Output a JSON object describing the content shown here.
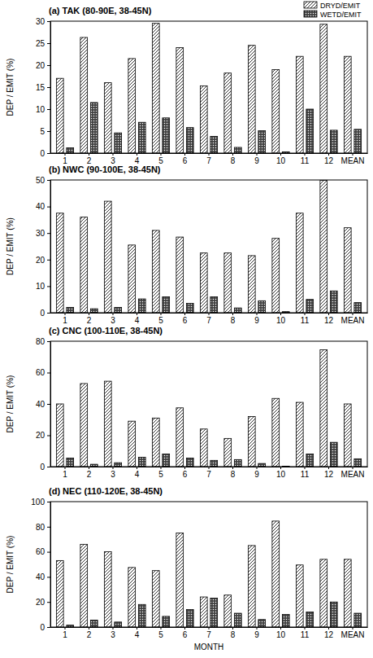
{
  "chart_data": [
    {
      "type": "bar",
      "title": "(a) TAK (80-90E, 38-45N)",
      "y_label": "DEP / EMIT (%)",
      "categories": [
        "1",
        "2",
        "3",
        "4",
        "5",
        "6",
        "7",
        "8",
        "9",
        "10",
        "11",
        "12",
        "MEAN"
      ],
      "series": [
        {
          "name": "DRYD/EMIT",
          "color": "#000000",
          "values": [
            17,
            26.3,
            16,
            21.5,
            29.5,
            24,
            15.3,
            18.2,
            24.5,
            19,
            22,
            29.3,
            22
          ]
        },
        {
          "name": "WETD/EMIT",
          "color": "#000000",
          "values": [
            1.2,
            11.5,
            4.6,
            7,
            8,
            5.8,
            3.8,
            1.3,
            5.1,
            0.3,
            10,
            5.2,
            5.4
          ]
        }
      ],
      "ylim": [
        0,
        30
      ],
      "yticks": [
        0,
        5,
        10,
        15,
        20,
        25,
        30
      ],
      "legend": "top-right"
    },
    {
      "type": "bar",
      "title": "(b) NWC (90-100E, 38-45N)",
      "y_label": "DEP / EMIT (%)",
      "categories": [
        "1",
        "2",
        "3",
        "4",
        "5",
        "6",
        "7",
        "8",
        "9",
        "10",
        "11",
        "12",
        "MEAN"
      ],
      "series": [
        {
          "color": "#000000",
          "values": [
            37.5,
            36,
            42,
            25.5,
            31,
            28.5,
            22.5,
            22.5,
            21.5,
            28,
            37.5,
            49.8,
            32
          ]
        },
        {
          "color": "#000000",
          "values": [
            2,
            1.5,
            2,
            5.2,
            6,
            3.5,
            6,
            1.8,
            4.5,
            0.4,
            5,
            8.2,
            3.8
          ]
        }
      ],
      "ylim": [
        0,
        50
      ],
      "yticks": [
        0,
        10,
        20,
        30,
        40,
        50
      ]
    },
    {
      "type": "bar",
      "title": "(c) CNC (100-110E, 38-45N)",
      "y_label": "DEP / EMIT (%)",
      "categories": [
        "1",
        "2",
        "3",
        "4",
        "5",
        "6",
        "7",
        "8",
        "9",
        "10",
        "11",
        "12",
        "MEAN"
      ],
      "series": [
        {
          "color": "#000000",
          "values": [
            40,
            53,
            54.5,
            29,
            31,
            37.5,
            24,
            18,
            32,
            43.5,
            41,
            74.5,
            40
          ]
        },
        {
          "color": "#000000",
          "values": [
            5.5,
            1.5,
            2.5,
            6,
            8,
            5.5,
            4,
            4.5,
            2,
            0.3,
            8,
            15.5,
            5
          ]
        }
      ],
      "ylim": [
        0,
        80
      ],
      "yticks": [
        0,
        20,
        40,
        60,
        80
      ]
    },
    {
      "type": "bar",
      "title": "(d) NEC (110-120E, 38-45N)",
      "y_label": "DEP / EMIT (%)",
      "x_label": "MONTH",
      "categories": [
        "1",
        "2",
        "3",
        "4",
        "5",
        "6",
        "7",
        "8",
        "9",
        "10",
        "11",
        "12",
        "MEAN"
      ],
      "series": [
        {
          "color": "#000000",
          "values": [
            53,
            66,
            60,
            47.5,
            45,
            75,
            24,
            25.5,
            65,
            84.5,
            49.5,
            54,
            54
          ]
        },
        {
          "color": "#000000",
          "values": [
            1.5,
            5.5,
            4,
            18,
            8.5,
            14,
            23,
            11,
            6,
            10,
            12,
            20,
            11
          ]
        }
      ],
      "ylim": [
        0,
        100
      ],
      "yticks": [
        0,
        20,
        40,
        60,
        80,
        100
      ]
    }
  ]
}
